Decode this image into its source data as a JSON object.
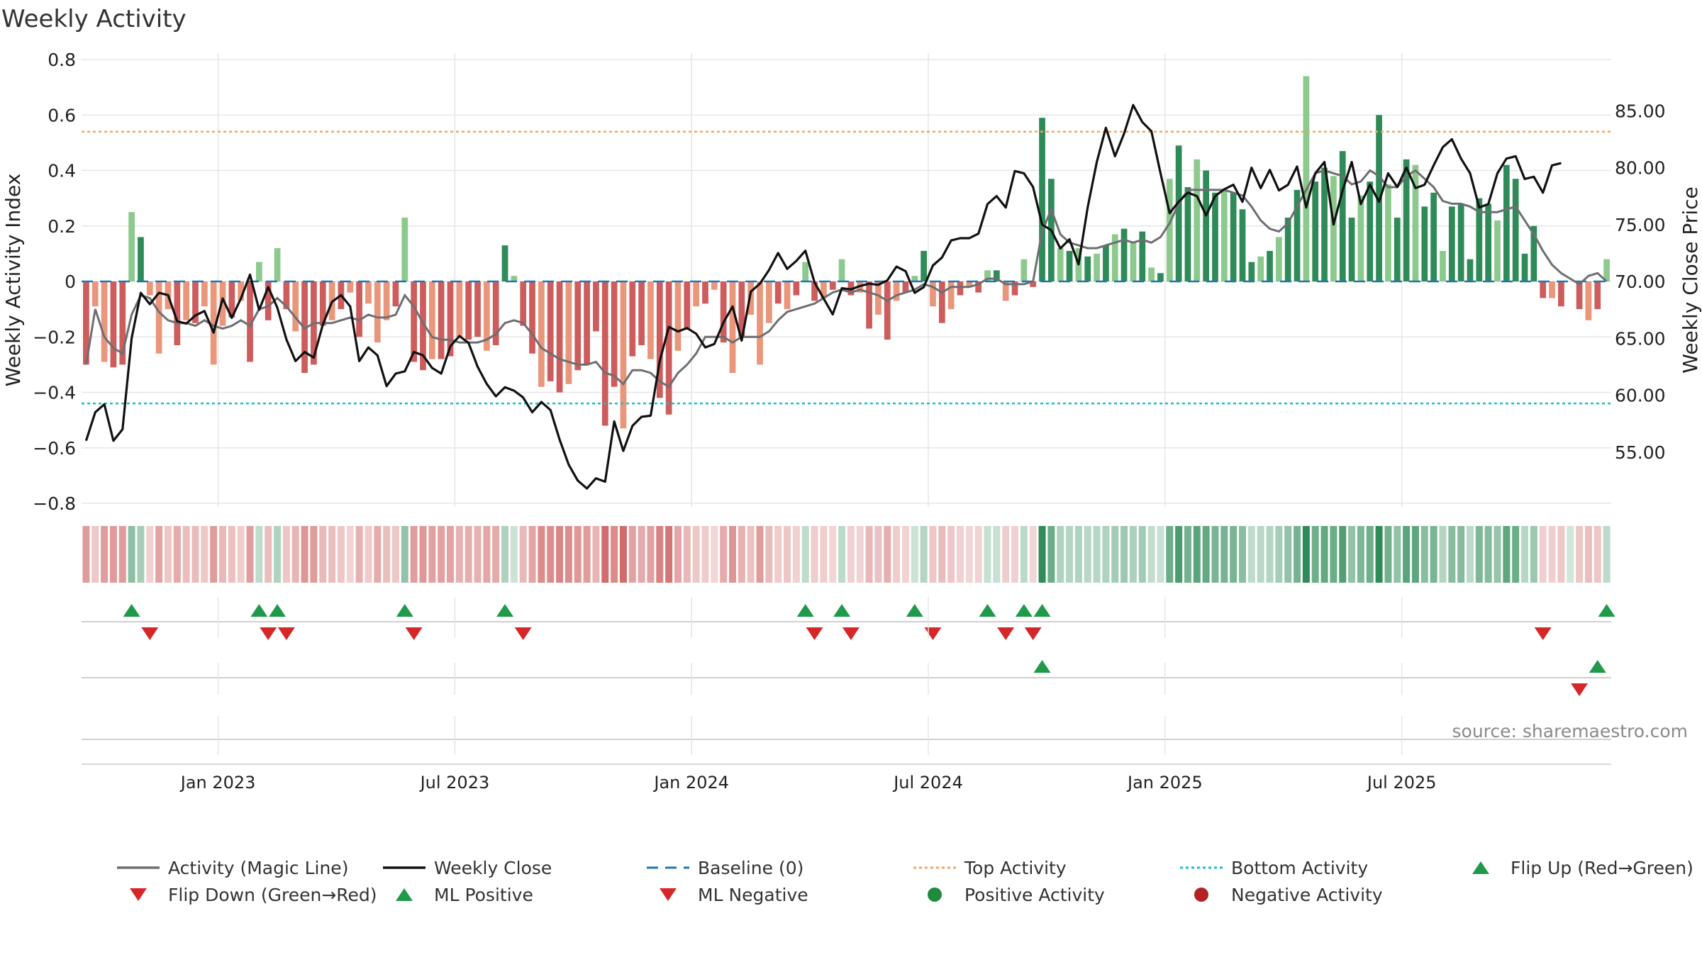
{
  "chart_data": {
    "type": "bar",
    "title": "Weekly Activity",
    "source": "source: sharemaestro.com",
    "y_left": {
      "label": "Weekly Activity Index",
      "ylim": [
        -0.8,
        0.8
      ],
      "ticks": [
        0.8,
        0.6,
        0.4,
        0.2,
        0,
        -0.2,
        -0.4,
        -0.6,
        -0.8
      ],
      "tick_labels": [
        "0.8",
        "0.6",
        "0.4",
        "0.2",
        "0",
        "−0.2",
        "−0.4",
        "−0.6",
        "−0.8"
      ]
    },
    "y_right": {
      "label": "Weekly Close Price",
      "ylim": [
        50,
        85
      ],
      "ticks": [
        85,
        80,
        75,
        70,
        65,
        60,
        55
      ],
      "tick_labels": [
        "85.00",
        "80.00",
        "75.00",
        "70.00",
        "65.00",
        "60.00",
        "55.00"
      ]
    },
    "x_axis": {
      "start_date": "2022-09-26",
      "interval": "weekly",
      "tick_labels": [
        "Jan 2023",
        "Jul 2023",
        "Jan 2024",
        "Jul 2024",
        "Jan 2025",
        "Jul 2025"
      ],
      "tick_weeks": [
        14.5,
        40.5,
        66.5,
        92.5,
        118.5,
        144.5
      ]
    },
    "reference_lines": {
      "top_activity": 0.54,
      "bottom_activity": -0.44,
      "baseline": 0
    },
    "activity": [
      -0.3,
      -0.09,
      -0.29,
      -0.31,
      -0.3,
      0.25,
      0.16,
      -0.05,
      -0.26,
      -0.1,
      -0.23,
      -0.14,
      -0.15,
      -0.09,
      -0.3,
      -0.16,
      -0.13,
      -0.07,
      -0.29,
      0.07,
      -0.14,
      0.12,
      -0.1,
      -0.18,
      -0.33,
      -0.3,
      -0.16,
      -0.14,
      -0.1,
      -0.04,
      -0.2,
      -0.08,
      -0.22,
      -0.14,
      -0.09,
      0.23,
      -0.29,
      -0.32,
      -0.28,
      -0.28,
      -0.27,
      -0.2,
      -0.21,
      -0.2,
      -0.25,
      -0.23,
      0.13,
      0.02,
      -0.16,
      -0.26,
      -0.38,
      -0.36,
      -0.4,
      -0.37,
      -0.32,
      -0.3,
      -0.18,
      -0.52,
      -0.38,
      -0.53,
      -0.27,
      -0.23,
      -0.28,
      -0.42,
      -0.48,
      -0.25,
      -0.17,
      -0.09,
      -0.08,
      -0.03,
      -0.22,
      -0.33,
      -0.2,
      -0.12,
      -0.3,
      -0.15,
      -0.08,
      -0.1,
      -0.05,
      0.07,
      -0.07,
      -0.06,
      -0.03,
      0.08,
      -0.05,
      -0.04,
      -0.17,
      -0.12,
      -0.21,
      -0.07,
      -0.04,
      0.02,
      0.11,
      -0.09,
      -0.15,
      -0.1,
      -0.05,
      -0.02,
      -0.04,
      0.04,
      0.04,
      -0.07,
      -0.05,
      0.08,
      -0.02,
      0.59,
      0.37,
      0.12,
      0.11,
      0.12,
      0.09,
      0.1,
      0.13,
      0.17,
      0.19,
      0.14,
      0.18,
      0.05,
      0.03,
      0.37,
      0.49,
      0.34,
      0.44,
      0.4,
      0.32,
      0.33,
      0.32,
      0.26,
      0.07,
      0.09,
      0.11,
      0.16,
      0.23,
      0.33,
      0.74,
      0.36,
      0.41,
      0.38,
      0.47,
      0.23,
      0.31,
      0.36,
      0.6,
      0.35,
      0.23,
      0.44,
      0.42,
      0.27,
      0.32,
      0.11,
      0.27,
      0.28,
      0.08,
      0.3,
      0.28,
      0.22,
      0.42,
      0.37,
      0.1,
      0.2,
      -0.06,
      -0.06,
      -0.09,
      0,
      -0.1,
      -0.14,
      -0.1,
      0.08
    ],
    "magic_line": [
      -0.3,
      -0.1,
      -0.2,
      -0.24,
      -0.26,
      -0.12,
      -0.05,
      -0.06,
      -0.11,
      -0.14,
      -0.15,
      -0.15,
      -0.16,
      -0.14,
      -0.16,
      -0.17,
      -0.16,
      -0.14,
      -0.16,
      -0.1,
      -0.09,
      -0.06,
      -0.09,
      -0.13,
      -0.17,
      -0.15,
      -0.15,
      -0.15,
      -0.14,
      -0.13,
      -0.14,
      -0.12,
      -0.13,
      -0.13,
      -0.12,
      -0.05,
      -0.09,
      -0.15,
      -0.2,
      -0.21,
      -0.21,
      -0.22,
      -0.22,
      -0.22,
      -0.21,
      -0.19,
      -0.15,
      -0.14,
      -0.15,
      -0.19,
      -0.24,
      -0.26,
      -0.28,
      -0.29,
      -0.3,
      -0.3,
      -0.29,
      -0.33,
      -0.34,
      -0.37,
      -0.32,
      -0.32,
      -0.33,
      -0.36,
      -0.38,
      -0.33,
      -0.3,
      -0.26,
      -0.2,
      -0.2,
      -0.2,
      -0.22,
      -0.2,
      -0.2,
      -0.2,
      -0.18,
      -0.14,
      -0.11,
      -0.1,
      -0.09,
      -0.08,
      -0.06,
      -0.04,
      -0.03,
      -0.04,
      -0.03,
      -0.04,
      -0.05,
      -0.07,
      -0.05,
      -0.04,
      -0.03,
      -0.01,
      -0.02,
      -0.04,
      -0.02,
      -0.02,
      -0.02,
      -0.01,
      0.01,
      0.01,
      -0.01,
      -0.01,
      -0.01,
      0,
      0.18,
      0.26,
      0.17,
      0.14,
      0.13,
      0.12,
      0.12,
      0.13,
      0.14,
      0.15,
      0.14,
      0.15,
      0.14,
      0.16,
      0.21,
      0.28,
      0.33,
      0.33,
      0.33,
      0.33,
      0.33,
      0.32,
      0.31,
      0.27,
      0.22,
      0.19,
      0.18,
      0.21,
      0.27,
      0.33,
      0.39,
      0.4,
      0.39,
      0.38,
      0.35,
      0.36,
      0.4,
      0.38,
      0.34,
      0.34,
      0.38,
      0.4,
      0.37,
      0.34,
      0.29,
      0.28,
      0.28,
      0.27,
      0.25,
      0.25,
      0.25,
      0.26,
      0.27,
      0.22,
      0.17,
      0.11,
      0.06,
      0.03,
      0.01,
      -0.01,
      0.02,
      0.03,
      0
    ],
    "weekly_close": [
      56.0,
      58.5,
      59.2,
      56.0,
      57.0,
      65.0,
      69.0,
      68.0,
      69.0,
      68.8,
      66.5,
      66.3,
      67.0,
      67.4,
      65.5,
      68.5,
      66.8,
      68.5,
      70.6,
      67.5,
      69.5,
      67.7,
      64.9,
      63.0,
      63.8,
      63.3,
      66.2,
      68.2,
      68.8,
      67.8,
      63.0,
      64.2,
      63.5,
      60.8,
      61.9,
      62.1,
      63.8,
      63.5,
      62.4,
      61.9,
      64.3,
      65.2,
      64.6,
      62.5,
      61.0,
      59.9,
      60.7,
      60.4,
      59.8,
      58.5,
      59.4,
      58.7,
      56.1,
      53.9,
      52.5,
      51.8,
      52.7,
      52.4,
      57.7,
      55.1,
      57.3,
      58.1,
      58.2,
      63.0,
      66.0,
      65.6,
      65.9,
      65.4,
      64.2,
      64.5,
      66.4,
      67.8,
      64.8,
      69.1,
      69.8,
      71.0,
      72.5,
      71.1,
      71.8,
      72.7,
      69.9,
      68.5,
      67.1,
      69.4,
      69.3,
      69.6,
      69.8,
      69.7,
      70.1,
      71.3,
      70.9,
      69.0,
      69.5,
      71.4,
      72.1,
      73.6,
      73.8,
      73.8,
      74.2,
      76.8,
      77.5,
      76.5,
      79.7,
      79.5,
      78.3,
      75.0,
      74.5,
      72.9,
      73.7,
      71.5,
      76.5,
      80.5,
      83.5,
      81.0,
      83.0,
      85.5,
      84.0,
      83.2,
      79.5,
      76.0,
      77.0,
      77.8,
      77.5,
      75.8,
      77.5,
      78.1,
      78.5,
      77.0,
      80.0,
      78.2,
      79.8,
      78.0,
      78.5,
      80.1,
      76.5,
      79.5,
      80.5,
      75.0,
      78.0,
      80.5,
      76.8,
      78.5,
      77.0,
      79.5,
      78.3,
      80.0,
      78.2,
      78.5,
      80.2,
      81.8,
      82.5,
      80.8,
      79.5,
      76.5,
      76.8,
      79.5,
      80.8,
      81.0,
      79.0,
      79.2,
      77.8,
      80.2,
      80.4
    ]
  },
  "legend": {
    "items": [
      {
        "label": "Activity (Magic Line)",
        "symbol": "line-gray"
      },
      {
        "label": "Weekly Close",
        "symbol": "line-black"
      },
      {
        "label": "Baseline (0)",
        "symbol": "dashed-blue"
      },
      {
        "label": "Top Activity",
        "symbol": "dotted-orange"
      },
      {
        "label": "Bottom Activity",
        "symbol": "dotted-cyan"
      },
      {
        "label": "Flip Up (Red→Green)",
        "symbol": "triangle-up-green"
      },
      {
        "label": "Flip Down (Green→Red)",
        "symbol": "triangle-down-red"
      },
      {
        "label": "ML Positive",
        "symbol": "triangle-up-green"
      },
      {
        "label": "ML Negative",
        "symbol": "triangle-down-red"
      },
      {
        "label": "Positive Activity",
        "symbol": "circle-green"
      },
      {
        "label": "Negative Activity",
        "symbol": "circle-red"
      }
    ]
  },
  "colors": {
    "pos_strong": "#2e8b57",
    "pos_light": "#8cc98c",
    "neg_strong": "#cd5c5c",
    "neg_light": "#e9967a",
    "magic_line": "#6e6e73",
    "close_line": "#111111",
    "baseline": "#1f77b4",
    "top_line": "#f4a460",
    "bottom_line": "#17becf",
    "flip_up": "#1f9a4a",
    "flip_down": "#d62728",
    "grid": "#e6e6e6"
  }
}
